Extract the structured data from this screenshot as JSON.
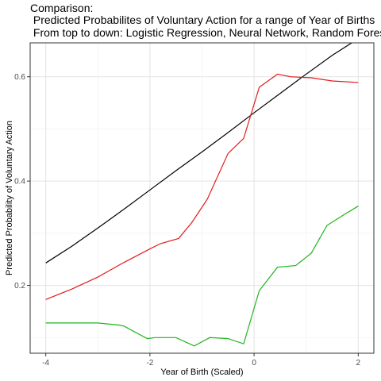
{
  "chart_data": {
    "type": "line",
    "title_lines": [
      "Comparison:",
      " Predicted Probabilites of Voluntary Action for a range of Year of Births",
      " From top to down: Logistic Regression, Neural Network, Random Forest"
    ],
    "xlabel": "Year of Birth (Scaled)",
    "ylabel": "Predicted Probability of Voluntary Action",
    "xlim": [
      -4.3,
      2.3
    ],
    "ylim": [
      0.07,
      0.665
    ],
    "x_ticks": [
      -4,
      -2,
      0,
      2
    ],
    "x_tick_labels": [
      "-4",
      "-2",
      "0",
      "2"
    ],
    "y_ticks": [
      0.2,
      0.4,
      0.6
    ],
    "y_tick_labels": [
      "0.2",
      "0.4",
      "0.6"
    ],
    "x_minor": [
      -3,
      -1,
      1
    ],
    "y_minor": [
      0.1,
      0.3,
      0.5
    ],
    "grid": true,
    "legend": "none",
    "series": [
      {
        "color": "#000000",
        "x": [
          -4,
          -3.5,
          -3,
          -2.5,
          -2,
          -1.5,
          -1,
          -0.5,
          0,
          0.5,
          1,
          1.5,
          2
        ],
        "y": [
          0.243,
          0.275,
          0.31,
          0.346,
          0.383,
          0.42,
          0.456,
          0.493,
          0.531,
          0.568,
          0.605,
          0.641,
          0.673
        ]
      },
      {
        "color": "#e41a1c",
        "x": [
          -4,
          -3.5,
          -3,
          -2.5,
          -2,
          -1.8,
          -1.45,
          -1.2,
          -0.9,
          -0.5,
          -0.2,
          0.1,
          0.45,
          0.7,
          1.1,
          1.5,
          2
        ],
        "y": [
          0.173,
          0.193,
          0.216,
          0.244,
          0.27,
          0.28,
          0.29,
          0.32,
          0.365,
          0.453,
          0.482,
          0.58,
          0.605,
          0.6,
          0.598,
          0.592,
          0.589
        ]
      },
      {
        "color": "#1db51d",
        "x": [
          -4,
          -3,
          -2.6,
          -2.5,
          -2.05,
          -1.9,
          -1.5,
          -1.15,
          -0.85,
          -0.5,
          -0.2,
          0.1,
          0.45,
          0.8,
          1.1,
          1.4,
          1.75,
          2
        ],
        "y": [
          0.128,
          0.128,
          0.124,
          0.122,
          0.098,
          0.1,
          0.1,
          0.084,
          0.1,
          0.098,
          0.088,
          0.19,
          0.235,
          0.238,
          0.262,
          0.315,
          0.337,
          0.352
        ]
      }
    ]
  }
}
